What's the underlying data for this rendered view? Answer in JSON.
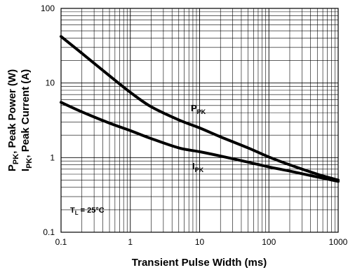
{
  "chart_data": {
    "type": "line",
    "xscale": "log",
    "yscale": "log",
    "xlim": [
      0.1,
      1000
    ],
    "ylim": [
      0.1,
      100
    ],
    "grid": true,
    "xlabel": "Transient Pulse Width (ms)",
    "ylabel": {
      "line1": {
        "P": "P",
        "sub": "PK",
        "rest": ", Peak Power (W)"
      },
      "line2": {
        "I": "I",
        "sub": "PK",
        "rest": ", Peak Current (A)"
      }
    },
    "x_ticks": [
      "0.1",
      "1",
      "10",
      "100",
      "1000"
    ],
    "y_ticks": [
      "0.1",
      "1",
      "10",
      "100"
    ],
    "series": [
      {
        "name": "P_PK",
        "label_main": "P",
        "label_sub": "PK",
        "x": [
          0.1,
          0.2,
          0.5,
          1,
          2,
          5,
          10,
          20,
          50,
          100,
          200,
          500,
          1000
        ],
        "y": [
          42,
          25,
          12.5,
          7.5,
          4.8,
          3.2,
          2.5,
          1.9,
          1.35,
          1.02,
          0.8,
          0.6,
          0.5
        ]
      },
      {
        "name": "I_PK",
        "label_main": "I",
        "label_sub": "PK",
        "x": [
          0.1,
          0.2,
          0.5,
          1,
          2,
          5,
          10,
          20,
          50,
          100,
          200,
          500,
          1000
        ],
        "y": [
          5.5,
          4.1,
          2.9,
          2.3,
          1.8,
          1.35,
          1.2,
          1.05,
          0.87,
          0.75,
          0.66,
          0.55,
          0.48
        ]
      }
    ],
    "annotation": {
      "main": "T",
      "sub": "L",
      "rest": " = 25°C"
    }
  }
}
